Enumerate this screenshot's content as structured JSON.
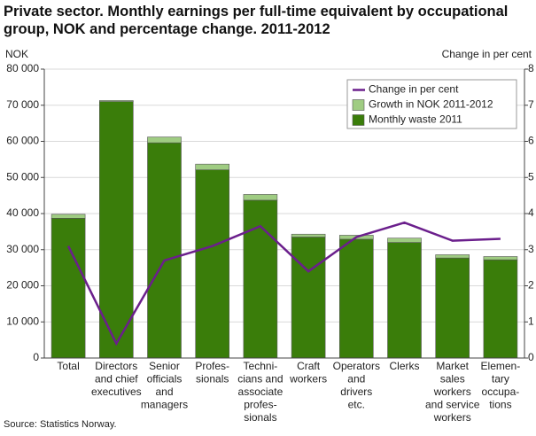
{
  "chart_data": {
    "type": "bar",
    "stacked": true,
    "title": [
      "Private sector. Monthly earnings per full-time equivalent by occupational",
      "group, NOK and percentage change. 2011-2012"
    ],
    "ylabel": "NOK",
    "y2label": "Change in per cent",
    "source": "Source: Statistics Norway.",
    "categories": [
      [
        "Total"
      ],
      [
        "Directors",
        "and chief",
        "executives"
      ],
      [
        "Senior",
        "officials",
        "and",
        "managers"
      ],
      [
        "Profes-",
        "sionals"
      ],
      [
        "Techni-",
        "cians and",
        "associate",
        "profes-",
        "sionals"
      ],
      [
        "Craft",
        "workers"
      ],
      [
        "Operators",
        "and",
        "drivers",
        "etc."
      ],
      [
        "Clerks"
      ],
      [
        "Market",
        "sales",
        "workers",
        "and service",
        "workers"
      ],
      [
        "Elemen-",
        "tary",
        "occupa-",
        "tions"
      ]
    ],
    "series": [
      {
        "name": "Monthly waste 2011",
        "color": "#3a7d0a",
        "values": [
          38700,
          71000,
          59600,
          52100,
          43700,
          33500,
          32900,
          32000,
          27700,
          27200
        ]
      },
      {
        "name": "Growth in NOK 2011-2012",
        "color": "#9fcc82",
        "values": [
          1100,
          300,
          1600,
          1600,
          1600,
          800,
          1100,
          1200,
          900,
          900
        ]
      },
      {
        "name": "Change in per cent",
        "color": "#6b1f8c",
        "type": "line",
        "axis": "y2",
        "values": [
          3.1,
          0.4,
          2.7,
          3.1,
          3.65,
          2.4,
          3.35,
          3.75,
          3.25,
          3.3
        ]
      }
    ],
    "ylim": [
      0,
      80000
    ],
    "yticks": [
      0,
      {
        "value": 10000,
        "label": "10 000"
      },
      {
        "value": 20000,
        "label": "20 000"
      },
      {
        "value": 30000,
        "label": "30 000"
      },
      {
        "value": 40000,
        "label": "40 000"
      },
      {
        "value": 50000,
        "label": "50 000"
      },
      {
        "value": 60000,
        "label": "60 000"
      },
      {
        "value": 70000,
        "label": "70 000"
      },
      {
        "value": 80000,
        "label": "80 000"
      }
    ],
    "y2lim": [
      0,
      8
    ],
    "y2ticks": [
      0,
      1,
      2,
      3,
      4,
      5,
      6,
      7,
      8
    ],
    "grid": true,
    "legend": "top-right"
  }
}
